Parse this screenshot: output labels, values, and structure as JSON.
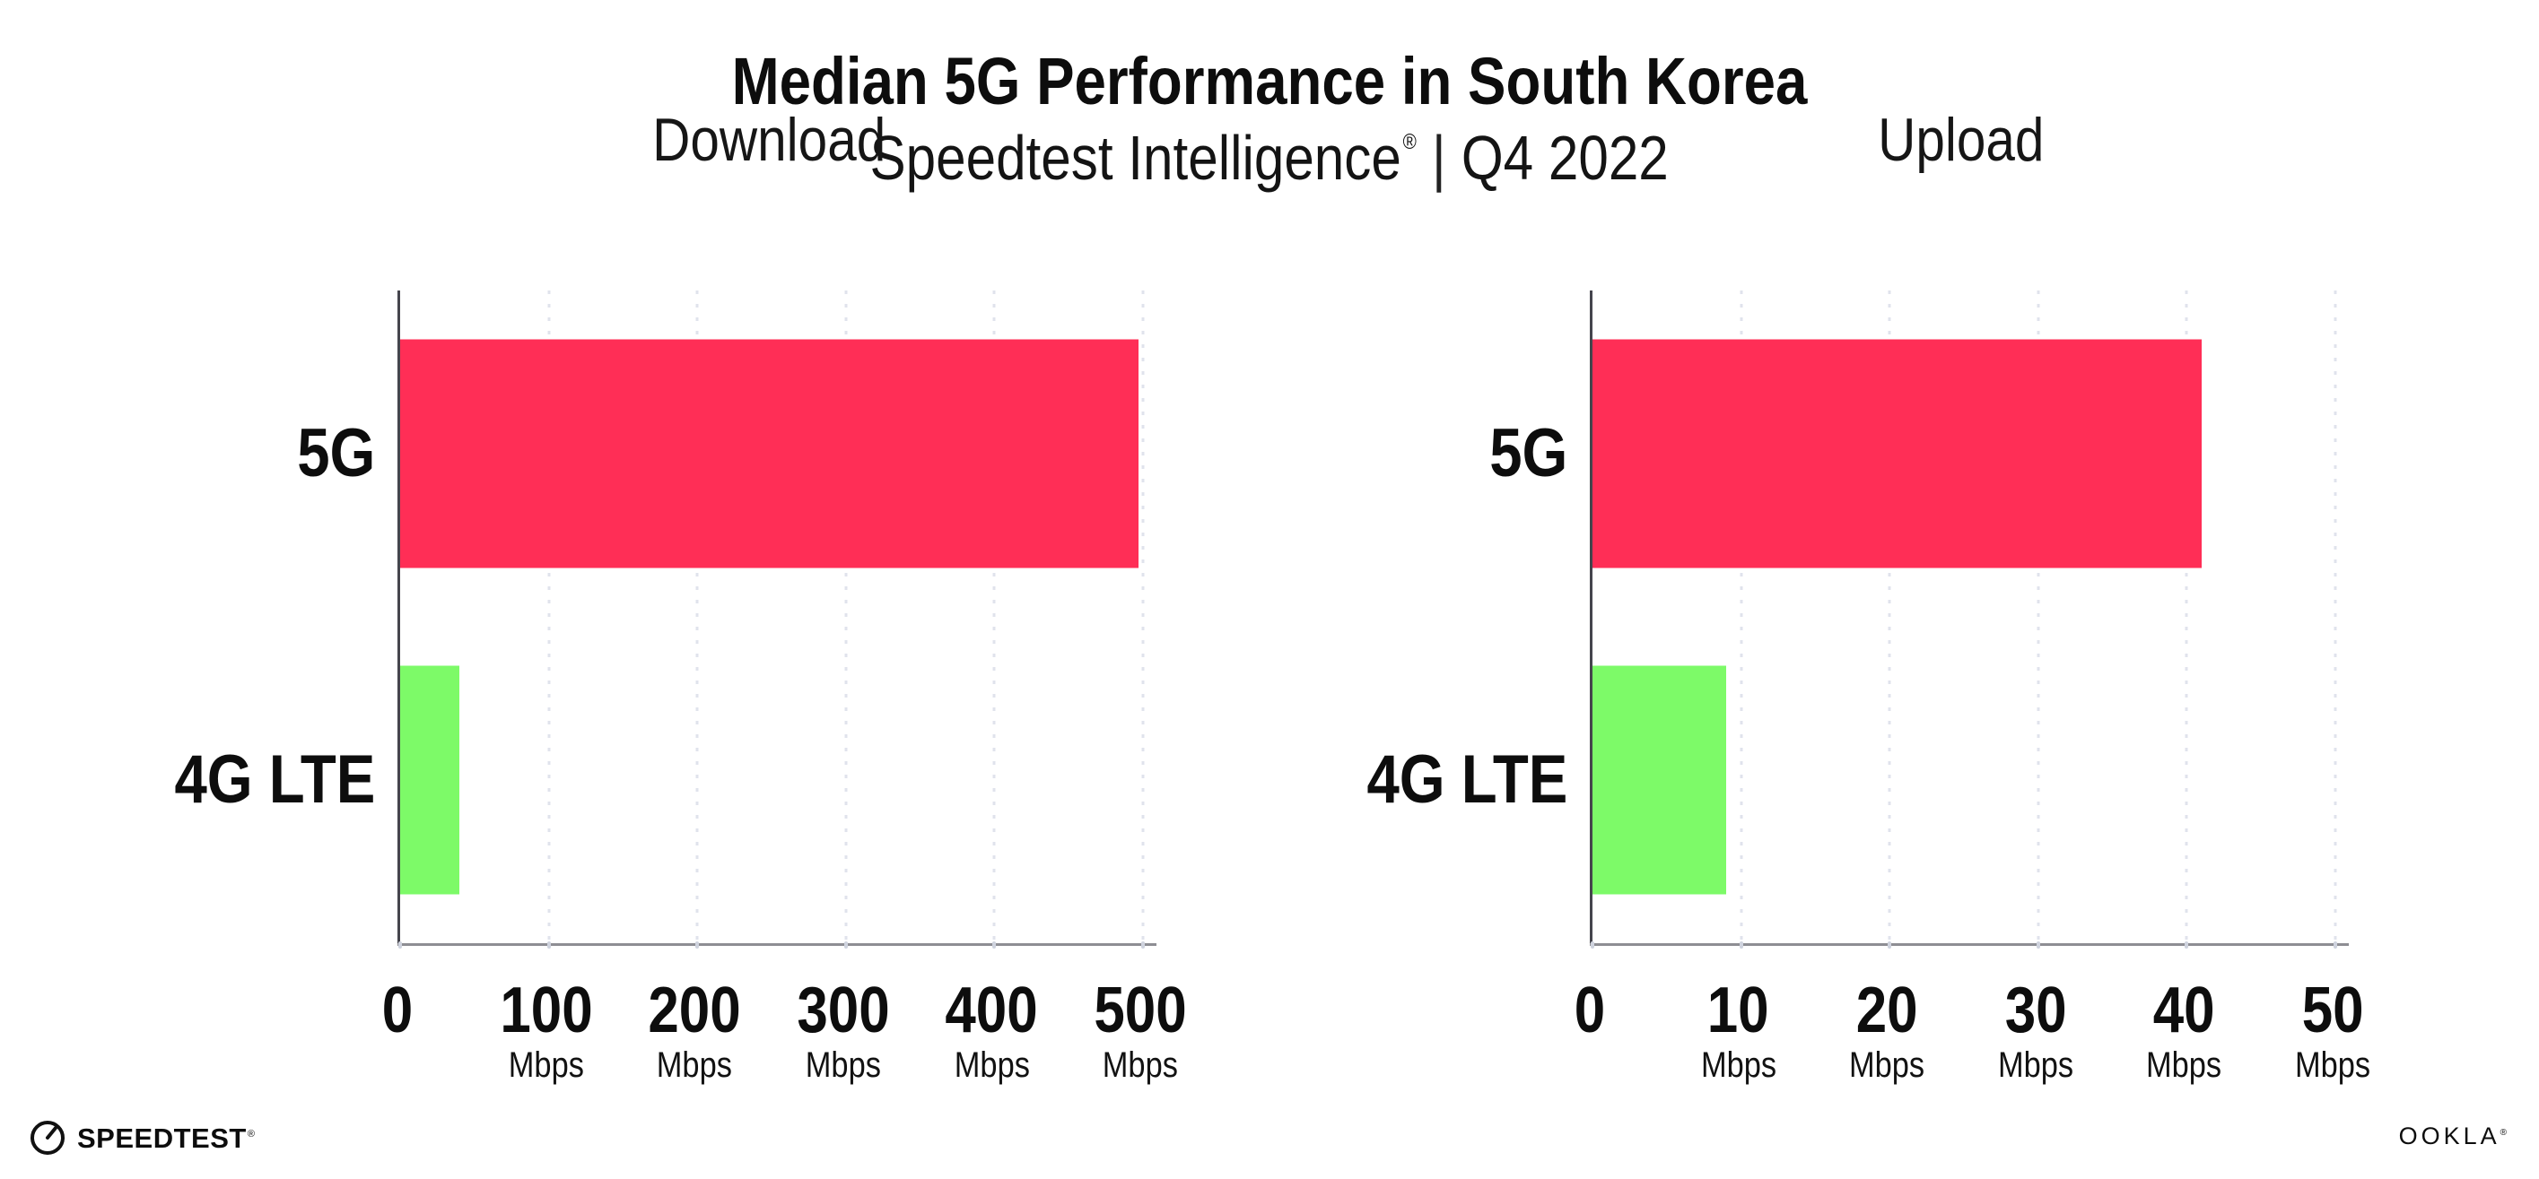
{
  "header": {
    "title": "Median 5G Performance in South Korea",
    "subtitle_brand": "Speedtest Intelligence",
    "subtitle_reg_mark": "®",
    "subtitle_separator": "|",
    "subtitle_period": "Q4 2022"
  },
  "colors": {
    "bar_5g": "#ff2e56",
    "bar_4g_lte": "#7dfa68",
    "x_axis_line": "#8e8e93",
    "y_axis_line": "#45454d",
    "gridline": "#e0e3ec",
    "tick_mark": "#cfd3de",
    "text": "#0d0d0d",
    "background": "#ffffff"
  },
  "chart_data": [
    {
      "type": "bar",
      "orientation": "horizontal",
      "title": "Download",
      "categories": [
        "5G",
        "4G LTE"
      ],
      "values": [
        497,
        40
      ],
      "unit": "Mbps",
      "xlim": [
        0,
        500
      ],
      "xticks": [
        0,
        100,
        200,
        300,
        400,
        500
      ],
      "grid": "vertical-dotted",
      "legend": "none"
    },
    {
      "type": "bar",
      "orientation": "horizontal",
      "title": "Upload",
      "categories": [
        "5G",
        "4G LTE"
      ],
      "values": [
        41,
        9
      ],
      "unit": "Mbps",
      "xlim": [
        0,
        50
      ],
      "xticks": [
        0,
        10,
        20,
        30,
        40,
        50
      ],
      "grid": "vertical-dotted",
      "legend": "none"
    }
  ],
  "footer": {
    "speedtest_logo_text": "SPEEDTEST",
    "speedtest_reg_mark": "®",
    "ookla_logo_text": "OOKLA",
    "ookla_reg_mark": "®"
  }
}
